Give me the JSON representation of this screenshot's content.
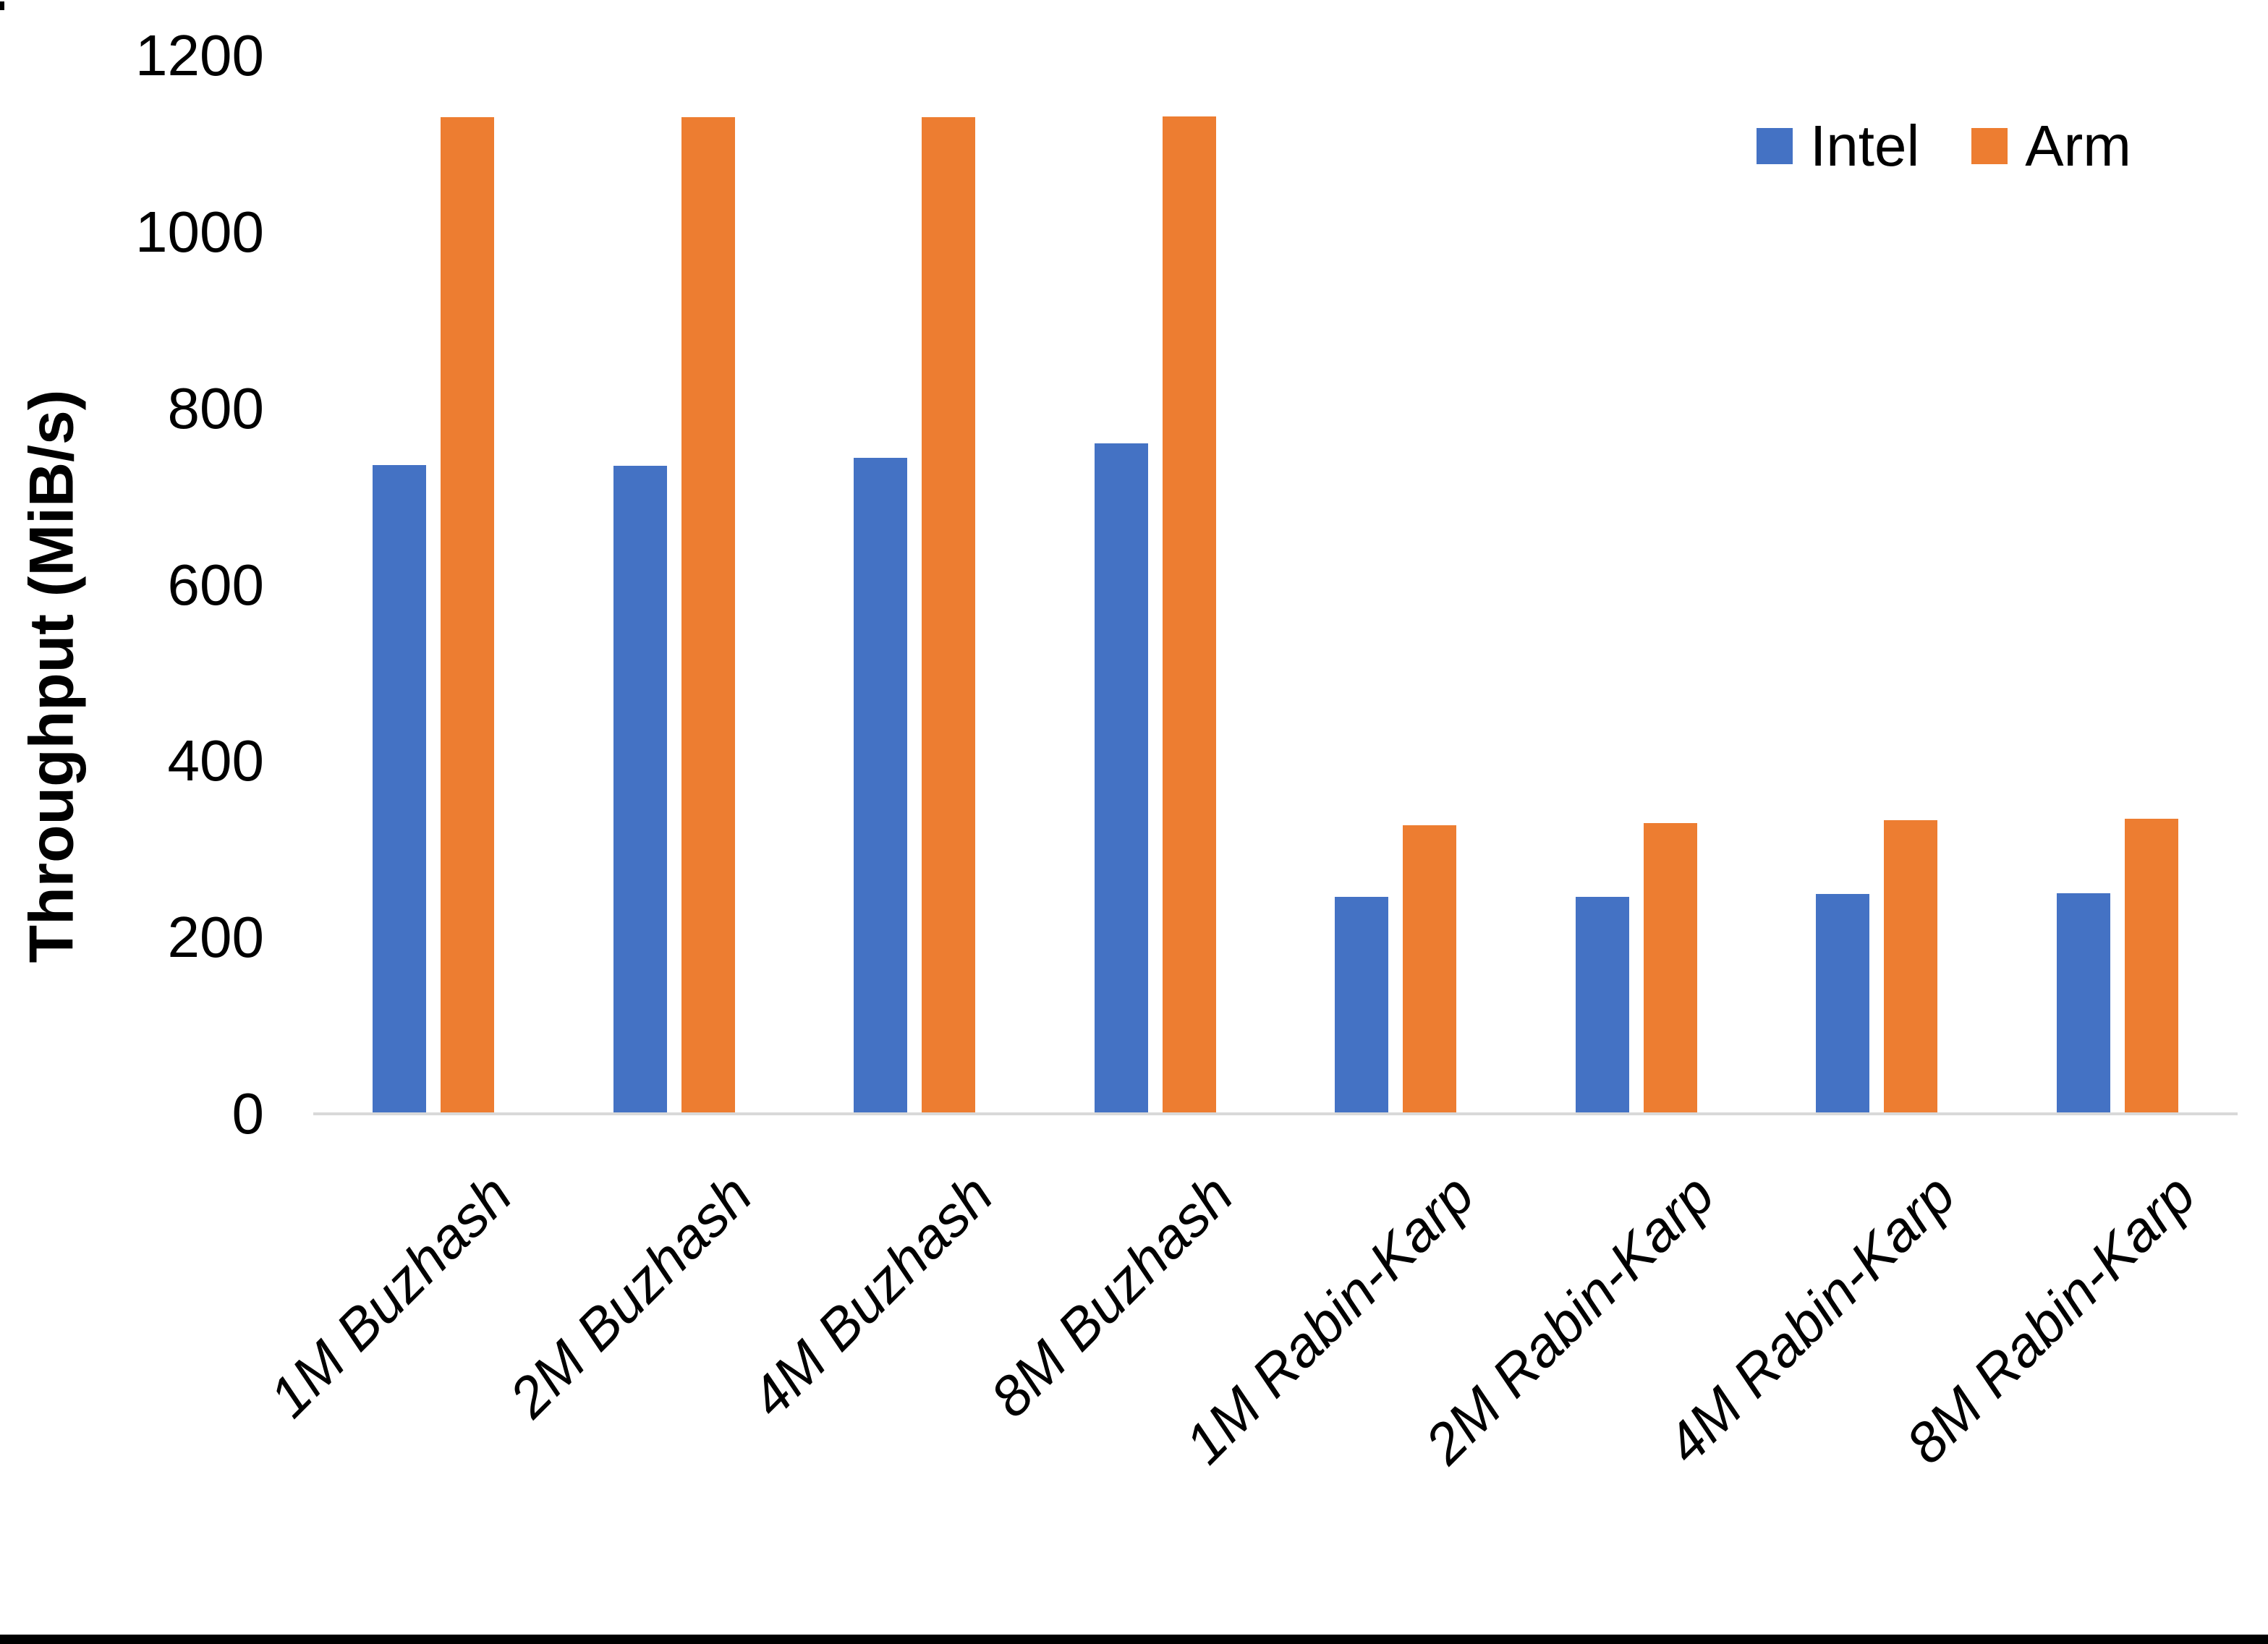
{
  "figure": {
    "background_color": "#ffffff",
    "bottom_border_color": "#000000",
    "text_color": "#000000"
  },
  "chart_data": {
    "type": "bar",
    "title": "",
    "xlabel": "",
    "ylabel": "Throughput (MiB/s)",
    "ylim": [
      0,
      1200
    ],
    "yticks": [
      0,
      200,
      400,
      600,
      800,
      1000,
      1200
    ],
    "grid": false,
    "axis_line_color": "#d9d9d9",
    "legend_position": "top-right",
    "categories": [
      "1M Buzhash",
      "2M Buzhash",
      "4M Buzhash",
      "8M Buzhash",
      "1M Rabin-Karp",
      "2M Rabin-Karp",
      "4M Rabin-Karp",
      "8M Rabin-Karp"
    ],
    "series": [
      {
        "name": "Intel",
        "color": "#4472C4",
        "values": [
          736,
          735,
          744,
          760,
          246,
          246,
          249,
          250
        ]
      },
      {
        "name": "Arm",
        "color": "#ED7D31",
        "values": [
          1130,
          1130,
          1130,
          1131,
          327,
          330,
          333,
          335
        ]
      }
    ]
  }
}
